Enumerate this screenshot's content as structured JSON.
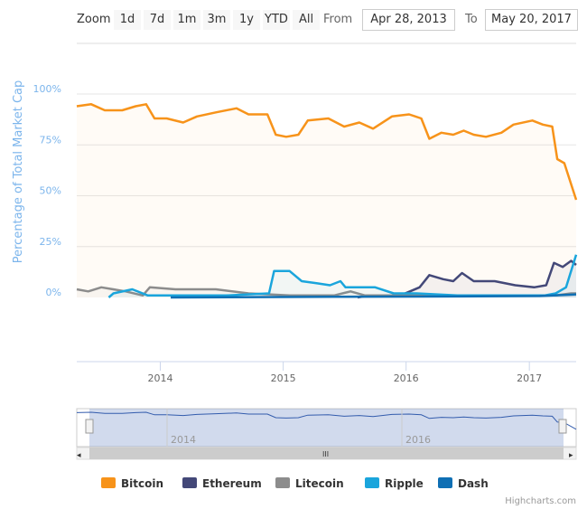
{
  "range_selector": {
    "zoom_label": "Zoom",
    "buttons": [
      "1d",
      "7d",
      "1m",
      "3m",
      "1y",
      "YTD",
      "All"
    ],
    "from_label": "From",
    "from": "Apr 28, 2013",
    "to_label": "To",
    "to": "May 20, 2017"
  },
  "credits": "Highcharts.com",
  "navigator": {
    "ticks": [
      "2014",
      "2016"
    ]
  },
  "chart_data": {
    "type": "area",
    "ylabel": "Percentage of Total Market Cap",
    "ylim": [
      0,
      100
    ],
    "yticks": [
      "0%",
      "25%",
      "50%",
      "75%",
      "100%"
    ],
    "xlim": [
      "2013-04-28",
      "2017-05-20"
    ],
    "xticks": [
      "2014",
      "2015",
      "2016",
      "2017"
    ],
    "legend": "bottom",
    "series": [
      {
        "name": "Bitcoin",
        "color": "#f7931a",
        "points": [
          [
            "2013-04-28",
            94
          ],
          [
            "2013-06-10",
            95
          ],
          [
            "2013-07-20",
            92
          ],
          [
            "2013-09-10",
            92
          ],
          [
            "2013-10-20",
            94
          ],
          [
            "2013-11-20",
            95
          ],
          [
            "2013-12-15",
            88
          ],
          [
            "2014-01-20",
            88
          ],
          [
            "2014-03-10",
            86
          ],
          [
            "2014-04-20",
            89
          ],
          [
            "2014-06-15",
            91
          ],
          [
            "2014-08-15",
            93
          ],
          [
            "2014-09-20",
            90
          ],
          [
            "2014-11-15",
            90
          ],
          [
            "2014-12-10",
            80
          ],
          [
            "2015-01-10",
            79
          ],
          [
            "2015-02-15",
            80
          ],
          [
            "2015-03-15",
            87
          ],
          [
            "2015-05-15",
            88
          ],
          [
            "2015-07-01",
            84
          ],
          [
            "2015-08-15",
            86
          ],
          [
            "2015-09-25",
            83
          ],
          [
            "2015-11-20",
            89
          ],
          [
            "2016-01-10",
            90
          ],
          [
            "2016-02-15",
            88
          ],
          [
            "2016-03-10",
            78
          ],
          [
            "2016-04-15",
            81
          ],
          [
            "2016-05-20",
            80
          ],
          [
            "2016-06-20",
            82
          ],
          [
            "2016-07-20",
            80
          ],
          [
            "2016-08-25",
            79
          ],
          [
            "2016-10-10",
            81
          ],
          [
            "2016-11-15",
            85
          ],
          [
            "2017-01-10",
            87
          ],
          [
            "2017-02-10",
            85
          ],
          [
            "2017-03-10",
            84
          ],
          [
            "2017-03-25",
            68
          ],
          [
            "2017-04-15",
            66
          ],
          [
            "2017-05-20",
            48
          ]
        ]
      },
      {
        "name": "Ethereum",
        "color": "#434878",
        "points": [
          [
            "2015-08-10",
            0
          ],
          [
            "2015-09-15",
            1
          ],
          [
            "2015-12-15",
            1
          ],
          [
            "2016-02-10",
            5
          ],
          [
            "2016-03-10",
            11
          ],
          [
            "2016-04-20",
            9
          ],
          [
            "2016-05-20",
            8
          ],
          [
            "2016-06-15",
            12
          ],
          [
            "2016-07-20",
            8
          ],
          [
            "2016-09-20",
            8
          ],
          [
            "2016-11-20",
            6
          ],
          [
            "2017-01-15",
            5
          ],
          [
            "2017-02-20",
            6
          ],
          [
            "2017-03-15",
            17
          ],
          [
            "2017-04-10",
            15
          ],
          [
            "2017-05-05",
            18
          ],
          [
            "2017-05-20",
            16
          ]
        ]
      },
      {
        "name": "Litecoin",
        "color": "#8c8c8c",
        "points": [
          [
            "2013-04-28",
            4
          ],
          [
            "2013-06-01",
            3
          ],
          [
            "2013-07-10",
            5
          ],
          [
            "2013-09-20",
            3
          ],
          [
            "2013-11-10",
            1
          ],
          [
            "2013-12-01",
            5
          ],
          [
            "2014-02-15",
            4
          ],
          [
            "2014-06-15",
            4
          ],
          [
            "2014-09-20",
            2
          ],
          [
            "2015-01-20",
            1
          ],
          [
            "2015-06-01",
            1
          ],
          [
            "2015-07-20",
            3
          ],
          [
            "2015-09-01",
            1
          ],
          [
            "2016-06-01",
            1
          ],
          [
            "2017-03-20",
            1
          ],
          [
            "2017-05-05",
            2
          ],
          [
            "2017-05-20",
            2
          ]
        ]
      },
      {
        "name": "Ripple",
        "color": "#1aa5dc",
        "points": [
          [
            "2013-08-01",
            0
          ],
          [
            "2013-08-15",
            2
          ],
          [
            "2013-10-10",
            4
          ],
          [
            "2013-11-25",
            1
          ],
          [
            "2014-03-01",
            1
          ],
          [
            "2014-07-15",
            1
          ],
          [
            "2014-11-20",
            2
          ],
          [
            "2014-12-05",
            13
          ],
          [
            "2015-01-20",
            13
          ],
          [
            "2015-02-25",
            8
          ],
          [
            "2015-04-10",
            7
          ],
          [
            "2015-05-20",
            6
          ],
          [
            "2015-06-20",
            8
          ],
          [
            "2015-07-05",
            5
          ],
          [
            "2015-10-01",
            5
          ],
          [
            "2015-11-25",
            2
          ],
          [
            "2016-02-01",
            2
          ],
          [
            "2016-06-01",
            1
          ],
          [
            "2017-02-15",
            1
          ],
          [
            "2017-03-20",
            2
          ],
          [
            "2017-04-20",
            5
          ],
          [
            "2017-05-20",
            21
          ]
        ]
      },
      {
        "name": "Dash",
        "color": "#0f6fb4",
        "points": [
          [
            "2014-02-01",
            0
          ],
          [
            "2015-06-01",
            0.3
          ],
          [
            "2016-06-01",
            0.5
          ],
          [
            "2017-02-01",
            0.7
          ],
          [
            "2017-05-20",
            1.5
          ]
        ]
      }
    ]
  }
}
